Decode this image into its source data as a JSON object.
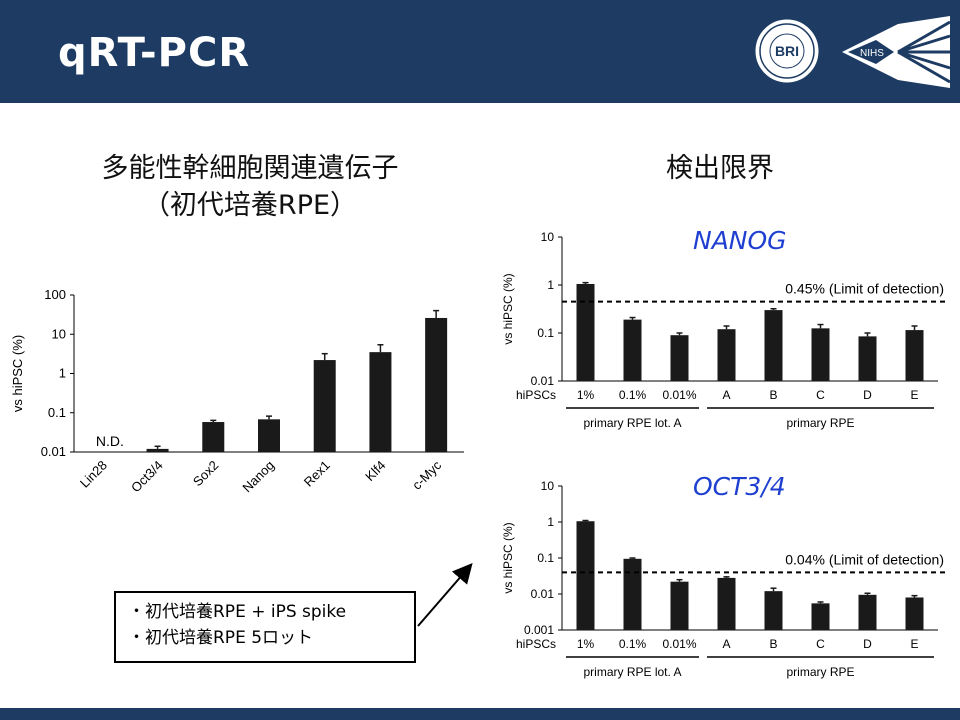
{
  "slide": {
    "title": "qRT-PCR"
  },
  "left_heading": {
    "line1": "多能性幹細胞関連遺伝子",
    "line2": "（初代培養RPE）"
  },
  "right_heading": "検出限界",
  "colors": {
    "header": "#1d3b63",
    "bar": "#1a1a1a",
    "gene_label": "#1f3fd0"
  },
  "logos": {
    "bri_text": "BRI",
    "nihs_text": "NIHS"
  },
  "note": {
    "lines": [
      "・初代培養RPE + iPS spike",
      "・初代培養RPE 5ロット"
    ]
  },
  "chart_data": [
    {
      "type": "bar",
      "yscale": "log",
      "ylabel": "vs hiPSC (%)",
      "ylim": [
        0.01,
        100
      ],
      "yticks": [
        "0.01",
        "0.1",
        "1",
        "10",
        "100"
      ],
      "categories": [
        "Lin28",
        "Oct3/4",
        "Sox2",
        "Nanog",
        "Rex1",
        "Klf4",
        "c-Myc"
      ],
      "values": [
        null,
        0.012,
        0.058,
        0.068,
        2.2,
        3.5,
        26
      ],
      "errors_upper": [
        null,
        0.014,
        0.064,
        0.082,
        3.2,
        5.4,
        40
      ],
      "annotations": [
        {
          "category": "Lin28",
          "text": "N.D."
        }
      ]
    },
    {
      "type": "bar",
      "yscale": "log",
      "gene": "NANOG",
      "ylabel": "vs hiPSC (%)",
      "ylim": [
        0.01,
        10
      ],
      "yticks": [
        "0.01",
        "0.1",
        "1",
        "10"
      ],
      "row_label": "hiPSCs",
      "categories": [
        "1%",
        "0.1%",
        "0.01%",
        "A",
        "B",
        "C",
        "D",
        "E"
      ],
      "values": [
        1.05,
        0.19,
        0.09,
        0.12,
        0.3,
        0.125,
        0.085,
        0.115
      ],
      "errors_upper": [
        1.12,
        0.21,
        0.1,
        0.14,
        0.32,
        0.15,
        0.1,
        0.14
      ],
      "threshold": {
        "value": 0.45,
        "label": "0.45% (Limit of detection)"
      },
      "groups": [
        {
          "label": "primary RPE lot. A",
          "from": 0,
          "to": 2
        },
        {
          "label": "primary RPE",
          "from": 3,
          "to": 7
        }
      ]
    },
    {
      "type": "bar",
      "yscale": "log",
      "gene": "OCT3/4",
      "ylabel": "vs hiPSC (%)",
      "ylim": [
        0.001,
        10
      ],
      "yticks": [
        "0.001",
        "0.01",
        "0.1",
        "1",
        "10"
      ],
      "row_label": "hiPSCs",
      "categories": [
        "1%",
        "0.1%",
        "0.01%",
        "A",
        "B",
        "C",
        "D",
        "E"
      ],
      "values": [
        1.05,
        0.095,
        0.022,
        0.028,
        0.012,
        0.0055,
        0.0095,
        0.008
      ],
      "errors_upper": [
        1.1,
        0.1,
        0.025,
        0.03,
        0.0145,
        0.006,
        0.0105,
        0.009
      ],
      "threshold": {
        "value": 0.04,
        "label": "0.04% (Limit of detection)"
      },
      "groups": [
        {
          "label": "primary RPE lot. A",
          "from": 0,
          "to": 2
        },
        {
          "label": "primary RPE",
          "from": 3,
          "to": 7
        }
      ]
    }
  ]
}
